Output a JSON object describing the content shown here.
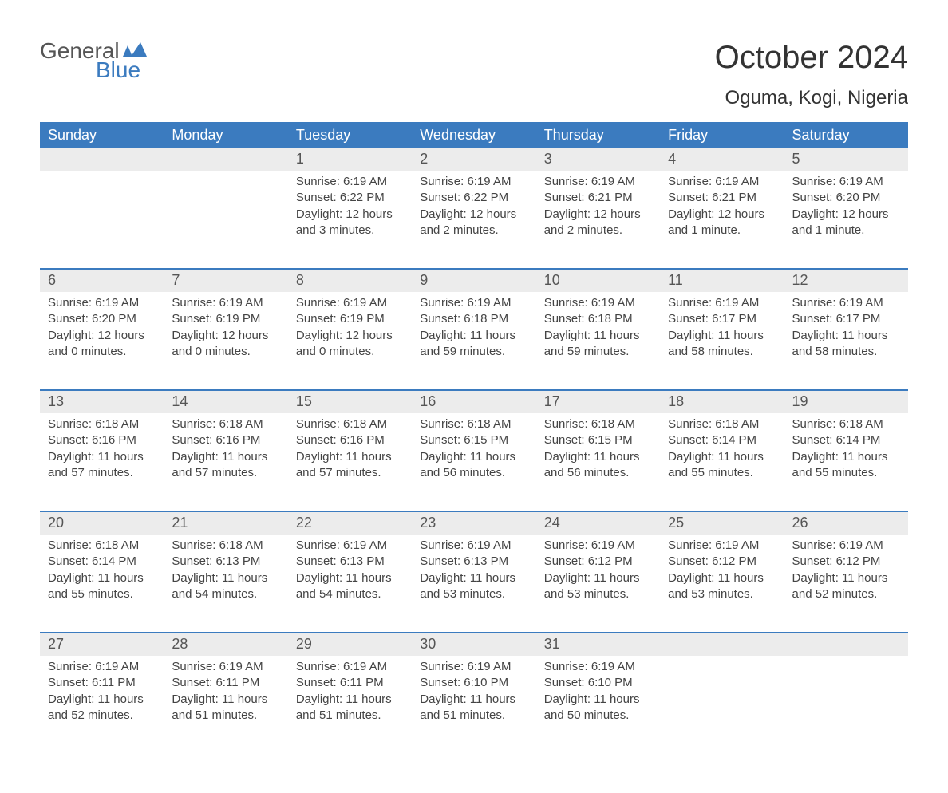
{
  "logo": {
    "top": "General",
    "bottom": "Blue"
  },
  "title": "October 2024",
  "location": "Oguma, Kogi, Nigeria",
  "colors": {
    "header_bg": "#3b7bbf",
    "header_text": "#ffffff",
    "band_bg": "#ececec",
    "divider": "#3b7bbf",
    "body_text": "#444444",
    "title_text": "#333333",
    "logo_gray": "#555555",
    "logo_blue": "#3b7bbf",
    "page_bg": "#ffffff"
  },
  "day_names": [
    "Sunday",
    "Monday",
    "Tuesday",
    "Wednesday",
    "Thursday",
    "Friday",
    "Saturday"
  ],
  "weeks": [
    [
      {
        "n": "",
        "sr": "",
        "ss": "",
        "dl": ""
      },
      {
        "n": "",
        "sr": "",
        "ss": "",
        "dl": ""
      },
      {
        "n": "1",
        "sr": "Sunrise: 6:19 AM",
        "ss": "Sunset: 6:22 PM",
        "dl": "Daylight: 12 hours and 3 minutes."
      },
      {
        "n": "2",
        "sr": "Sunrise: 6:19 AM",
        "ss": "Sunset: 6:22 PM",
        "dl": "Daylight: 12 hours and 2 minutes."
      },
      {
        "n": "3",
        "sr": "Sunrise: 6:19 AM",
        "ss": "Sunset: 6:21 PM",
        "dl": "Daylight: 12 hours and 2 minutes."
      },
      {
        "n": "4",
        "sr": "Sunrise: 6:19 AM",
        "ss": "Sunset: 6:21 PM",
        "dl": "Daylight: 12 hours and 1 minute."
      },
      {
        "n": "5",
        "sr": "Sunrise: 6:19 AM",
        "ss": "Sunset: 6:20 PM",
        "dl": "Daylight: 12 hours and 1 minute."
      }
    ],
    [
      {
        "n": "6",
        "sr": "Sunrise: 6:19 AM",
        "ss": "Sunset: 6:20 PM",
        "dl": "Daylight: 12 hours and 0 minutes."
      },
      {
        "n": "7",
        "sr": "Sunrise: 6:19 AM",
        "ss": "Sunset: 6:19 PM",
        "dl": "Daylight: 12 hours and 0 minutes."
      },
      {
        "n": "8",
        "sr": "Sunrise: 6:19 AM",
        "ss": "Sunset: 6:19 PM",
        "dl": "Daylight: 12 hours and 0 minutes."
      },
      {
        "n": "9",
        "sr": "Sunrise: 6:19 AM",
        "ss": "Sunset: 6:18 PM",
        "dl": "Daylight: 11 hours and 59 minutes."
      },
      {
        "n": "10",
        "sr": "Sunrise: 6:19 AM",
        "ss": "Sunset: 6:18 PM",
        "dl": "Daylight: 11 hours and 59 minutes."
      },
      {
        "n": "11",
        "sr": "Sunrise: 6:19 AM",
        "ss": "Sunset: 6:17 PM",
        "dl": "Daylight: 11 hours and 58 minutes."
      },
      {
        "n": "12",
        "sr": "Sunrise: 6:19 AM",
        "ss": "Sunset: 6:17 PM",
        "dl": "Daylight: 11 hours and 58 minutes."
      }
    ],
    [
      {
        "n": "13",
        "sr": "Sunrise: 6:18 AM",
        "ss": "Sunset: 6:16 PM",
        "dl": "Daylight: 11 hours and 57 minutes."
      },
      {
        "n": "14",
        "sr": "Sunrise: 6:18 AM",
        "ss": "Sunset: 6:16 PM",
        "dl": "Daylight: 11 hours and 57 minutes."
      },
      {
        "n": "15",
        "sr": "Sunrise: 6:18 AM",
        "ss": "Sunset: 6:16 PM",
        "dl": "Daylight: 11 hours and 57 minutes."
      },
      {
        "n": "16",
        "sr": "Sunrise: 6:18 AM",
        "ss": "Sunset: 6:15 PM",
        "dl": "Daylight: 11 hours and 56 minutes."
      },
      {
        "n": "17",
        "sr": "Sunrise: 6:18 AM",
        "ss": "Sunset: 6:15 PM",
        "dl": "Daylight: 11 hours and 56 minutes."
      },
      {
        "n": "18",
        "sr": "Sunrise: 6:18 AM",
        "ss": "Sunset: 6:14 PM",
        "dl": "Daylight: 11 hours and 55 minutes."
      },
      {
        "n": "19",
        "sr": "Sunrise: 6:18 AM",
        "ss": "Sunset: 6:14 PM",
        "dl": "Daylight: 11 hours and 55 minutes."
      }
    ],
    [
      {
        "n": "20",
        "sr": "Sunrise: 6:18 AM",
        "ss": "Sunset: 6:14 PM",
        "dl": "Daylight: 11 hours and 55 minutes."
      },
      {
        "n": "21",
        "sr": "Sunrise: 6:18 AM",
        "ss": "Sunset: 6:13 PM",
        "dl": "Daylight: 11 hours and 54 minutes."
      },
      {
        "n": "22",
        "sr": "Sunrise: 6:19 AM",
        "ss": "Sunset: 6:13 PM",
        "dl": "Daylight: 11 hours and 54 minutes."
      },
      {
        "n": "23",
        "sr": "Sunrise: 6:19 AM",
        "ss": "Sunset: 6:13 PM",
        "dl": "Daylight: 11 hours and 53 minutes."
      },
      {
        "n": "24",
        "sr": "Sunrise: 6:19 AM",
        "ss": "Sunset: 6:12 PM",
        "dl": "Daylight: 11 hours and 53 minutes."
      },
      {
        "n": "25",
        "sr": "Sunrise: 6:19 AM",
        "ss": "Sunset: 6:12 PM",
        "dl": "Daylight: 11 hours and 53 minutes."
      },
      {
        "n": "26",
        "sr": "Sunrise: 6:19 AM",
        "ss": "Sunset: 6:12 PM",
        "dl": "Daylight: 11 hours and 52 minutes."
      }
    ],
    [
      {
        "n": "27",
        "sr": "Sunrise: 6:19 AM",
        "ss": "Sunset: 6:11 PM",
        "dl": "Daylight: 11 hours and 52 minutes."
      },
      {
        "n": "28",
        "sr": "Sunrise: 6:19 AM",
        "ss": "Sunset: 6:11 PM",
        "dl": "Daylight: 11 hours and 51 minutes."
      },
      {
        "n": "29",
        "sr": "Sunrise: 6:19 AM",
        "ss": "Sunset: 6:11 PM",
        "dl": "Daylight: 11 hours and 51 minutes."
      },
      {
        "n": "30",
        "sr": "Sunrise: 6:19 AM",
        "ss": "Sunset: 6:10 PM",
        "dl": "Daylight: 11 hours and 51 minutes."
      },
      {
        "n": "31",
        "sr": "Sunrise: 6:19 AM",
        "ss": "Sunset: 6:10 PM",
        "dl": "Daylight: 11 hours and 50 minutes."
      },
      {
        "n": "",
        "sr": "",
        "ss": "",
        "dl": ""
      },
      {
        "n": "",
        "sr": "",
        "ss": "",
        "dl": ""
      }
    ]
  ]
}
